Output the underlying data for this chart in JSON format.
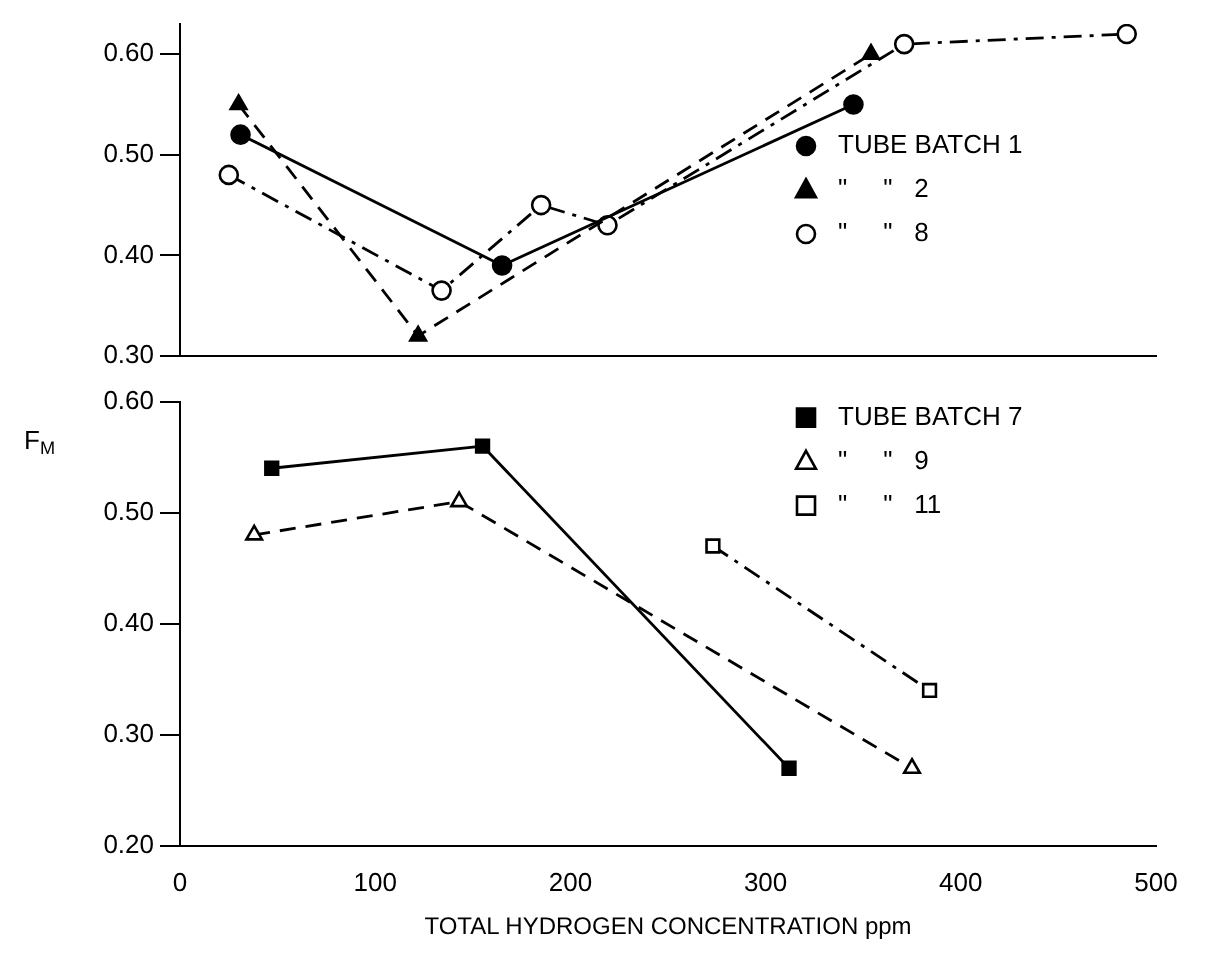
{
  "chart_data": [
    {
      "type": "line",
      "xlim": [
        0,
        500
      ],
      "xticks": [
        0,
        100,
        200,
        300,
        400,
        500
      ],
      "ylim": [
        0.3,
        0.63
      ],
      "yticks": [
        {
          "value": 0.3,
          "label": "0.30"
        },
        {
          "value": 0.4,
          "label": "0.40"
        },
        {
          "value": 0.5,
          "label": "0.50"
        },
        {
          "value": 0.6,
          "label": "0.60"
        }
      ],
      "tick_labels": "y",
      "grid": false,
      "legend": "right",
      "series": [
        {
          "name": "TUBE BATCH 1",
          "color": "#000000",
          "marker": "circle",
          "line_style": "solid",
          "x": [
            31,
            165,
            345
          ],
          "values": [
            0.52,
            0.39,
            0.55
          ]
        },
        {
          "name": "\"     \"   2",
          "color": "#000000",
          "marker": "triangle",
          "line_style": "dashed",
          "x": [
            30,
            122,
            354
          ],
          "values": [
            0.55,
            0.32,
            0.6
          ]
        },
        {
          "name": "\"     \"   8",
          "color": "#000000",
          "marker": "circle-open",
          "line_style": "dashdot",
          "x": [
            25,
            134,
            185,
            219,
            371,
            485
          ],
          "values": [
            0.48,
            0.365,
            0.45,
            0.43,
            0.61,
            0.62
          ]
        }
      ]
    },
    {
      "type": "line",
      "xlim": [
        0,
        500
      ],
      "xticks": [
        0,
        100,
        200,
        300,
        400,
        500
      ],
      "ylim": [
        0.2,
        0.6
      ],
      "yticks": [
        {
          "value": 0.2,
          "label": "0.20"
        },
        {
          "value": 0.3,
          "label": "0.30"
        },
        {
          "value": 0.4,
          "label": "0.40"
        },
        {
          "value": 0.5,
          "label": "0.50"
        },
        {
          "value": 0.6,
          "label": "0.60"
        }
      ],
      "xlabel": "TOTAL HYDROGEN CONCENTRATION ppm",
      "ylabel": "F$_{M}$",
      "grid": false,
      "legend": "top right",
      "series": [
        {
          "name": "TUBE BATCH 7",
          "color": "#000000",
          "marker": "square",
          "line_style": "solid",
          "x": [
            47,
            155,
            312
          ],
          "values": [
            0.54,
            0.56,
            0.27
          ]
        },
        {
          "name": "\"     \"   9",
          "color": "#000000",
          "marker": "triangle-open",
          "line_style": "dashed",
          "x": [
            38,
            143,
            375
          ],
          "values": [
            0.48,
            0.51,
            0.27
          ]
        },
        {
          "name": "\"     \"   11",
          "color": "#000000",
          "marker": "square-open",
          "line_style": "dashdot",
          "x": [
            273,
            384
          ],
          "values": [
            0.47,
            0.34
          ]
        }
      ]
    }
  ]
}
